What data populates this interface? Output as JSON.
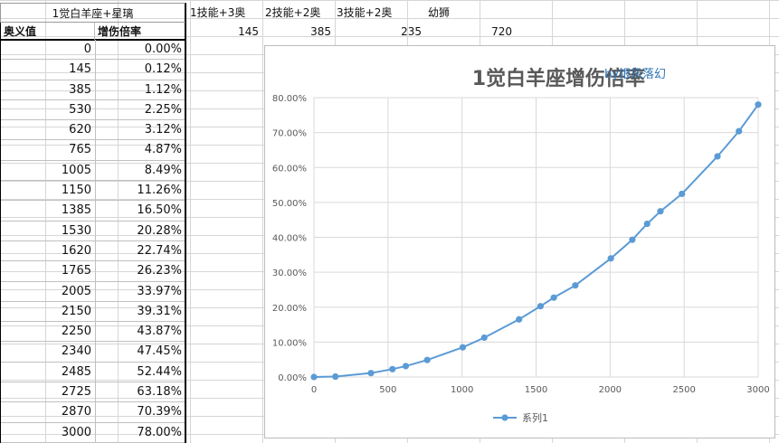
{
  "header": {
    "title": "1觉白羊座+星璃",
    "labels": [
      "1技能+3奥",
      "2技能+2奥",
      "3技能+2奥",
      "幼狮"
    ],
    "values": [
      "145",
      "385",
      "235",
      "720"
    ]
  },
  "table": {
    "col1_header": "奥义值",
    "col2_header": "增伤倍率",
    "rows": [
      [
        "0",
        "0.00%"
      ],
      [
        "145",
        "0.12%"
      ],
      [
        "385",
        "1.12%"
      ],
      [
        "530",
        "2.25%"
      ],
      [
        "620",
        "3.12%"
      ],
      [
        "765",
        "4.87%"
      ],
      [
        "1005",
        "8.49%"
      ],
      [
        "1150",
        "11.26%"
      ],
      [
        "1385",
        "16.50%"
      ],
      [
        "1530",
        "20.28%"
      ],
      [
        "1620",
        "22.74%"
      ],
      [
        "1765",
        "26.23%"
      ],
      [
        "2005",
        "33.97%"
      ],
      [
        "2150",
        "39.31%"
      ],
      [
        "2250",
        "43.87%"
      ],
      [
        "2340",
        "47.45%"
      ],
      [
        "2485",
        "52.44%"
      ],
      [
        "2725",
        "63.18%"
      ],
      [
        "2870",
        "70.39%"
      ],
      [
        "3000",
        "78.00%"
      ]
    ]
  },
  "chart_data": {
    "type": "line",
    "title": "1觉白羊座增伤倍率",
    "subtitle": "by银风落幻",
    "xlim": [
      0,
      3000
    ],
    "ylim": [
      0,
      80
    ],
    "x_ticks": [
      "0",
      "500",
      "1000",
      "1500",
      "2000",
      "2500",
      "3000"
    ],
    "y_ticks": [
      "0.00%",
      "10.00%",
      "20.00%",
      "30.00%",
      "40.00%",
      "50.00%",
      "60.00%",
      "70.00%",
      "80.00%"
    ],
    "grid": true,
    "legend_position": "bottom",
    "series": [
      {
        "name": "系列1",
        "color": "#5b9bd5",
        "x": [
          0,
          145,
          385,
          530,
          620,
          765,
          1005,
          1150,
          1385,
          1530,
          1620,
          1765,
          2005,
          2150,
          2250,
          2340,
          2485,
          2725,
          2870,
          3000
        ],
        "y": [
          0.0,
          0.12,
          1.12,
          2.25,
          3.12,
          4.87,
          8.49,
          11.26,
          16.5,
          20.28,
          22.74,
          26.23,
          33.97,
          39.31,
          43.87,
          47.45,
          52.44,
          63.18,
          70.39,
          78.0
        ]
      }
    ]
  }
}
